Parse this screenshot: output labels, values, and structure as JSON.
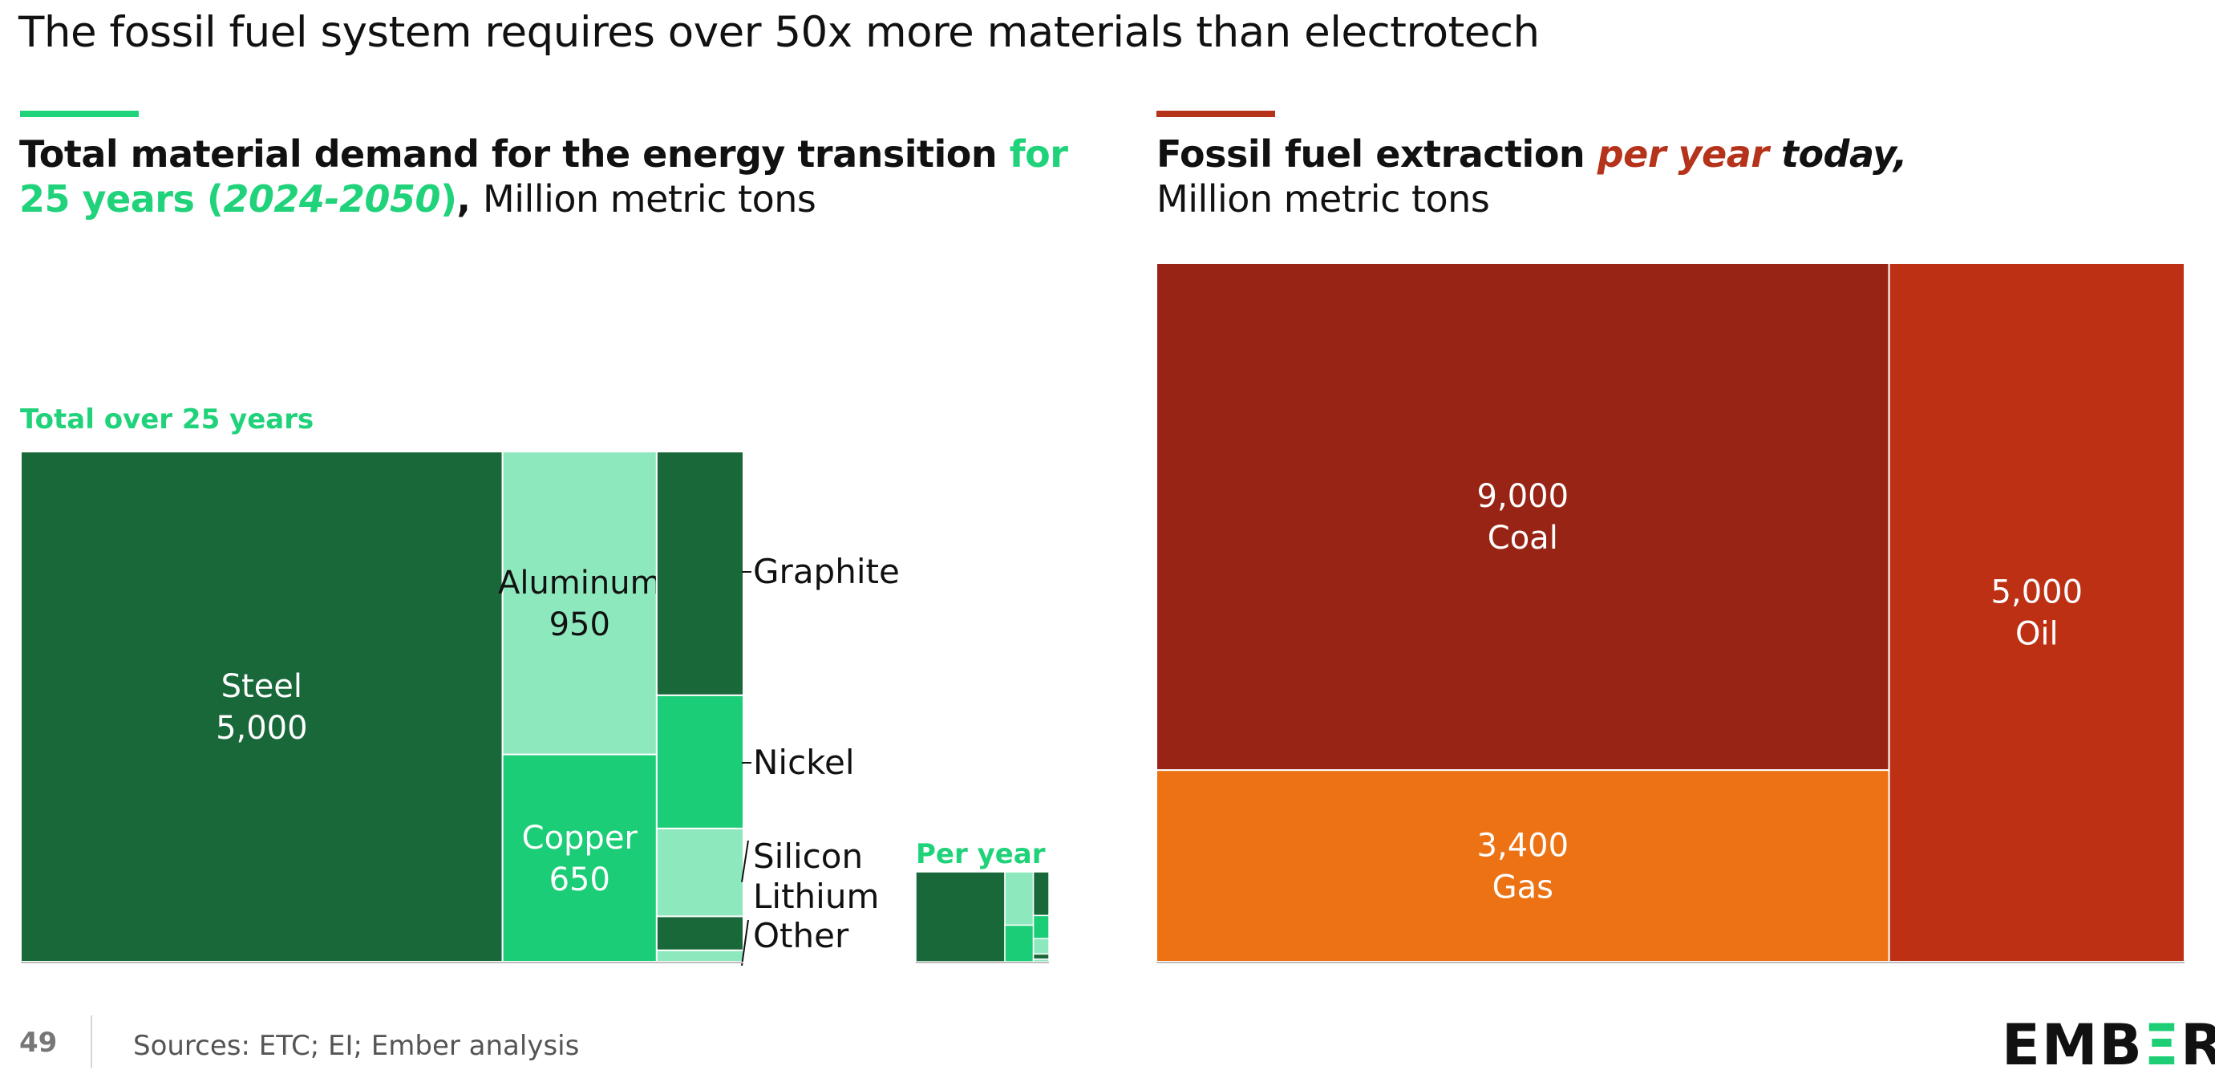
{
  "title": "The fossil fuel system requires over 50x more materials than electrotech",
  "colors": {
    "green_accent": "#20d27a",
    "green_dark": "#196839",
    "green_mid": "#1ccd77",
    "green_light": "#8ee8bd",
    "red_accent": "#b5321b",
    "coal": "#972414",
    "oil": "#bd3014",
    "gas": "#ed7213"
  },
  "left": {
    "heading_a": "Total material demand for the energy transition ",
    "heading_b": "for",
    "heading_c": "25 years (",
    "heading_d": "2024-2050",
    "heading_e": ")",
    "heading_f": ", ",
    "heading_unit": "Million metric tons",
    "total_label": "Total over 25 years",
    "per_year_label": "Per year"
  },
  "right": {
    "heading_a": "Fossil fuel extraction ",
    "heading_b": "per year",
    "heading_c": " today,",
    "heading_unit": "Million metric tons"
  },
  "chart_data": [
    {
      "type": "treemap",
      "title": "Total over 25 years",
      "unit": "Million metric tons",
      "items": [
        {
          "name": "Steel",
          "value": 5000,
          "value_label": "5,000"
        },
        {
          "name": "Aluminum",
          "value": 950,
          "value_label": "950"
        },
        {
          "name": "Copper",
          "value": 650,
          "value_label": "650"
        },
        {
          "name": "Graphite",
          "value": 430
        },
        {
          "name": "Nickel",
          "value": 235
        },
        {
          "name": "Silicon",
          "value": 155
        },
        {
          "name": "Lithium",
          "value": 60
        },
        {
          "name": "Other",
          "value": 20
        }
      ]
    },
    {
      "type": "treemap",
      "title": "Per year",
      "unit": "Million metric tons",
      "items": [
        {
          "name": "Steel",
          "value": 200
        },
        {
          "name": "Aluminum",
          "value": 38
        },
        {
          "name": "Copper",
          "value": 26
        },
        {
          "name": "Graphite",
          "value": 17
        },
        {
          "name": "Nickel",
          "value": 9
        },
        {
          "name": "Silicon",
          "value": 6
        },
        {
          "name": "Lithium",
          "value": 2
        },
        {
          "name": "Other",
          "value": 1
        }
      ]
    },
    {
      "type": "treemap",
      "title": "Fossil fuel extraction per year today",
      "unit": "Million metric tons",
      "items": [
        {
          "name": "Coal",
          "value": 9000,
          "value_label": "9,000"
        },
        {
          "name": "Gas",
          "value": 3400,
          "value_label": "3,400"
        },
        {
          "name": "Oil",
          "value": 5000,
          "value_label": "5,000"
        }
      ]
    }
  ],
  "footer": {
    "page": "49",
    "sources": "Sources: ETC; EI; Ember analysis",
    "logo_a": "EMB",
    "logo_b": "Ξ",
    "logo_c": "R"
  }
}
